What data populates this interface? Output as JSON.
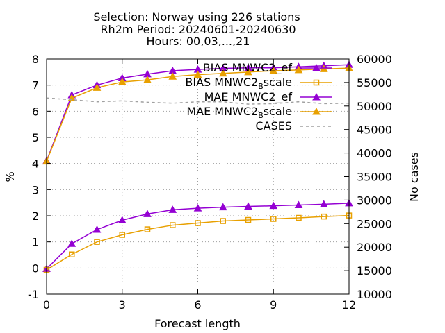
{
  "chart_data": {
    "type": "line",
    "title_lines": [
      "Selection: Norway using   226 stations",
      "Rh2m   Period: 20240601-20240630",
      "Hours: 00,03,...,21"
    ],
    "xlabel": "Forecast length",
    "ylabel": "%",
    "y2label": "No cases",
    "xlim": [
      0,
      12
    ],
    "ylim": [
      -1,
      8
    ],
    "y2lim": [
      10000,
      60000
    ],
    "xticks": [
      0,
      3,
      6,
      9,
      12
    ],
    "yticks": [
      -1,
      0,
      1,
      2,
      3,
      4,
      5,
      6,
      7,
      8
    ],
    "y2ticks": [
      10000,
      15000,
      20000,
      25000,
      30000,
      35000,
      40000,
      45000,
      50000,
      55000,
      60000
    ],
    "grid": true,
    "legend_position": "top-right",
    "x": [
      0,
      1,
      2,
      3,
      4,
      5,
      6,
      7,
      8,
      9,
      10,
      11,
      12
    ],
    "series": [
      {
        "name": "BIAS MNWC2_ef",
        "legend_label": "BIAS MNWC2_ef",
        "color": "#9400d3",
        "marker": "triangle",
        "axis": "y1",
        "values": [
          -0.03,
          0.93,
          1.47,
          1.83,
          2.07,
          2.23,
          2.29,
          2.33,
          2.36,
          2.38,
          2.41,
          2.44,
          2.48
        ]
      },
      {
        "name": "BIAS MNWC2_Bscale",
        "legend_label": "BIAS MNWC2",
        "legend_sub": "B",
        "legend_suffix": "scale",
        "color": "#e8a000",
        "marker": "square",
        "axis": "y1",
        "values": [
          -0.07,
          0.52,
          1.0,
          1.27,
          1.48,
          1.64,
          1.72,
          1.8,
          1.84,
          1.88,
          1.92,
          1.97,
          2.01
        ]
      },
      {
        "name": "MAE MNWC2_ef",
        "legend_label": "MAE MNWC2_ef",
        "color": "#9400d3",
        "marker": "triangle",
        "axis": "y1",
        "values": [
          4.1,
          6.62,
          7.0,
          7.27,
          7.42,
          7.55,
          7.6,
          7.64,
          7.66,
          7.66,
          7.7,
          7.74,
          7.78
        ]
      },
      {
        "name": "MAE MNWC2_Bscale",
        "legend_label": "MAE MNWC2",
        "legend_sub": "B",
        "legend_suffix": "scale",
        "color": "#e8a000",
        "marker": "triangle",
        "axis": "y1",
        "values": [
          4.08,
          6.5,
          6.9,
          7.12,
          7.2,
          7.33,
          7.4,
          7.45,
          7.5,
          7.55,
          7.58,
          7.62,
          7.65
        ]
      },
      {
        "name": "CASES",
        "legend_label": "CASES",
        "color": "#a0a0a0",
        "marker": "none",
        "dashed": true,
        "axis": "y2",
        "values": [
          51700,
          51350,
          50900,
          51100,
          50800,
          50600,
          50900,
          50900,
          50400,
          50500,
          50900,
          50500,
          50600
        ]
      }
    ]
  }
}
